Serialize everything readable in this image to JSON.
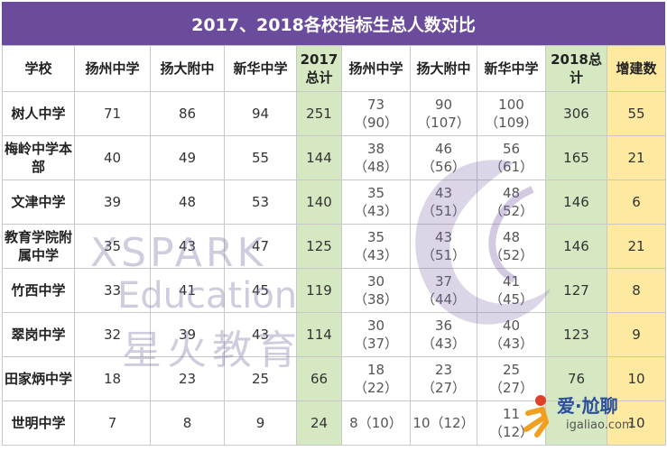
{
  "title": "2017、2018各校指标生总人数对比",
  "headers": [
    "学校",
    "扬州中学",
    "扬大附中",
    "新华中学",
    "2017总计",
    "扬州中学",
    "扬大附中",
    "新华中学",
    "2018总计",
    "增建数"
  ],
  "rows": [
    {
      "school": "树人中学",
      "y17": [
        "71",
        "86",
        "94"
      ],
      "t17": "251",
      "y18": [
        [
          "73",
          "（90）"
        ],
        [
          "90",
          "（107）"
        ],
        [
          "100",
          "（109）"
        ]
      ],
      "t18": "306",
      "inc": "55"
    },
    {
      "school": "梅岭中学本部",
      "y17": [
        "40",
        "49",
        "55"
      ],
      "t17": "144",
      "y18": [
        [
          "38",
          "（48）"
        ],
        [
          "46",
          "（56）"
        ],
        [
          "56",
          "（61）"
        ]
      ],
      "t18": "165",
      "inc": "21"
    },
    {
      "school": "文津中学",
      "y17": [
        "39",
        "48",
        "53"
      ],
      "t17": "140",
      "y18": [
        [
          "35",
          "（43）"
        ],
        [
          "43",
          "（51）"
        ],
        [
          "48",
          "（52）"
        ]
      ],
      "t18": "146",
      "inc": "6"
    },
    {
      "school": "教育学院附属中学",
      "y17": [
        "35",
        "43",
        "47"
      ],
      "t17": "125",
      "y18": [
        [
          "35",
          "（43）"
        ],
        [
          "43",
          "（51）"
        ],
        [
          "48",
          "（52）"
        ]
      ],
      "t18": "146",
      "inc": "21"
    },
    {
      "school": "竹西中学",
      "y17": [
        "33",
        "41",
        "45"
      ],
      "t17": "119",
      "y18": [
        [
          "30",
          "（38）"
        ],
        [
          "37",
          "（44）"
        ],
        [
          "41",
          "（45）"
        ]
      ],
      "t18": "127",
      "inc": "8"
    },
    {
      "school": "翠岗中学",
      "y17": [
        "32",
        "39",
        "43"
      ],
      "t17": "114",
      "y18": [
        [
          "30",
          "（37）"
        ],
        [
          "36",
          "（43）"
        ],
        [
          "40",
          "（43）"
        ]
      ],
      "t18": "123",
      "inc": "9"
    },
    {
      "school": "田家炳中学",
      "y17": [
        "18",
        "23",
        "25"
      ],
      "t17": "66",
      "y18": [
        [
          "18",
          "（22）"
        ],
        [
          "23",
          "（27）"
        ],
        [
          "25",
          "（27）"
        ]
      ],
      "t18": "76",
      "inc": "10"
    },
    {
      "school": "世明中学",
      "y17": [
        "7",
        "8",
        "9"
      ],
      "t17": "24",
      "y18": [
        [
          "8（10）",
          ""
        ],
        [
          "10（12）",
          ""
        ],
        [
          "11",
          "（12）"
        ]
      ],
      "t18": "",
      "inc": "10"
    }
  ],
  "watermark": {
    "line1": "XSPARK",
    "line2": "Education",
    "line3": "星火教育"
  },
  "brand": {
    "name": "爱·尬聊",
    "url": "igaliao.com"
  },
  "colors": {
    "title_bg": "#6a4b9c",
    "total_bg": "#d5e8c2",
    "increase_bg": "#fde9a0"
  }
}
